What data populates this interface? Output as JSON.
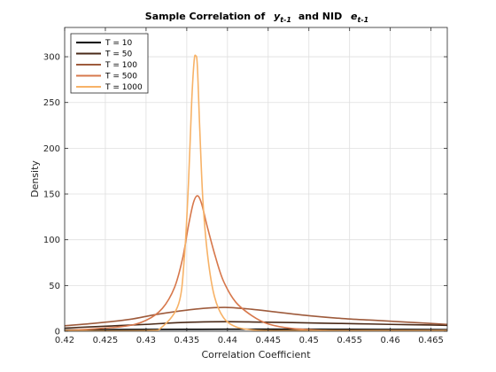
{
  "chart_data": {
    "type": "line",
    "title": {
      "prefix": "Sample Correlation of",
      "var1": "y",
      "var1_sub": "t-1",
      "mid": "and NID",
      "var2": "e",
      "var2_sub": "t-1"
    },
    "xlabel": "Correlation Coefficient",
    "ylabel": "Density",
    "xlim": [
      0.42,
      0.467
    ],
    "ylim": [
      0,
      332
    ],
    "x_ticks": [
      0.42,
      0.425,
      0.43,
      0.435,
      0.44,
      0.445,
      0.45,
      0.455,
      0.46,
      0.465
    ],
    "x_tick_labels": [
      "0.42",
      "0.425",
      "0.43",
      "0.435",
      "0.44",
      "0.445",
      "0.45",
      "0.455",
      "0.46",
      "0.465"
    ],
    "y_ticks": [
      0,
      50,
      100,
      150,
      200,
      250,
      300
    ],
    "y_tick_labels": [
      "0",
      "50",
      "100",
      "150",
      "200",
      "250",
      "300"
    ],
    "grid": true,
    "legend_position": "top-left",
    "series": [
      {
        "name": "T = 10",
        "color": "#000000",
        "x": [
          0.42,
          0.425,
          0.43,
          0.435,
          0.44,
          0.445,
          0.45,
          0.455,
          0.46,
          0.465,
          0.467
        ],
        "y": [
          1.5,
          1.8,
          2.0,
          2.1,
          2.2,
          2.2,
          2.2,
          2.1,
          2.0,
          1.9,
          1.8
        ]
      },
      {
        "name": "T = 50",
        "color": "#4a2a18",
        "x": [
          0.42,
          0.425,
          0.43,
          0.433,
          0.436,
          0.44,
          0.444,
          0.448,
          0.452,
          0.456,
          0.46,
          0.465,
          0.467
        ],
        "y": [
          3.5,
          5.5,
          7.5,
          9.0,
          10.0,
          10.5,
          10.0,
          9.5,
          8.8,
          8.2,
          7.5,
          6.8,
          6.5
        ]
      },
      {
        "name": "T = 100",
        "color": "#9e5b3c",
        "x": [
          0.42,
          0.424,
          0.428,
          0.431,
          0.434,
          0.437,
          0.44,
          0.443,
          0.446,
          0.45,
          0.454,
          0.458,
          0.462,
          0.465,
          0.467
        ],
        "y": [
          6,
          9,
          13,
          18,
          22,
          25,
          26,
          24,
          21,
          17,
          14,
          12,
          10,
          8.5,
          7.5
        ]
      },
      {
        "name": "T = 500",
        "color": "#d7784c",
        "x": [
          0.42,
          0.427,
          0.43,
          0.432,
          0.4335,
          0.4345,
          0.4352,
          0.4358,
          0.4363,
          0.4368,
          0.4375,
          0.4385,
          0.4395,
          0.441,
          0.443,
          0.445,
          0.448,
          0.452,
          0.455,
          0.46,
          0.467
        ],
        "y": [
          0,
          5,
          12,
          25,
          48,
          80,
          115,
          140,
          148,
          140,
          115,
          82,
          55,
          32,
          17,
          8,
          3,
          1,
          0.5,
          0.3,
          0.2
        ]
      },
      {
        "name": "T = 1000",
        "color": "#f7b267",
        "x": [
          0.42,
          0.43,
          0.432,
          0.434,
          0.4347,
          0.4352,
          0.4356,
          0.4359,
          0.4361,
          0.4363,
          0.4366,
          0.437,
          0.4376,
          0.4384,
          0.4395,
          0.441,
          0.443,
          0.445,
          0.45,
          0.467
        ],
        "y": [
          0,
          0.5,
          5,
          30,
          80,
          160,
          250,
          295,
          301,
          290,
          220,
          140,
          80,
          38,
          15,
          5,
          1.5,
          0.5,
          0.1,
          0
        ]
      }
    ]
  }
}
